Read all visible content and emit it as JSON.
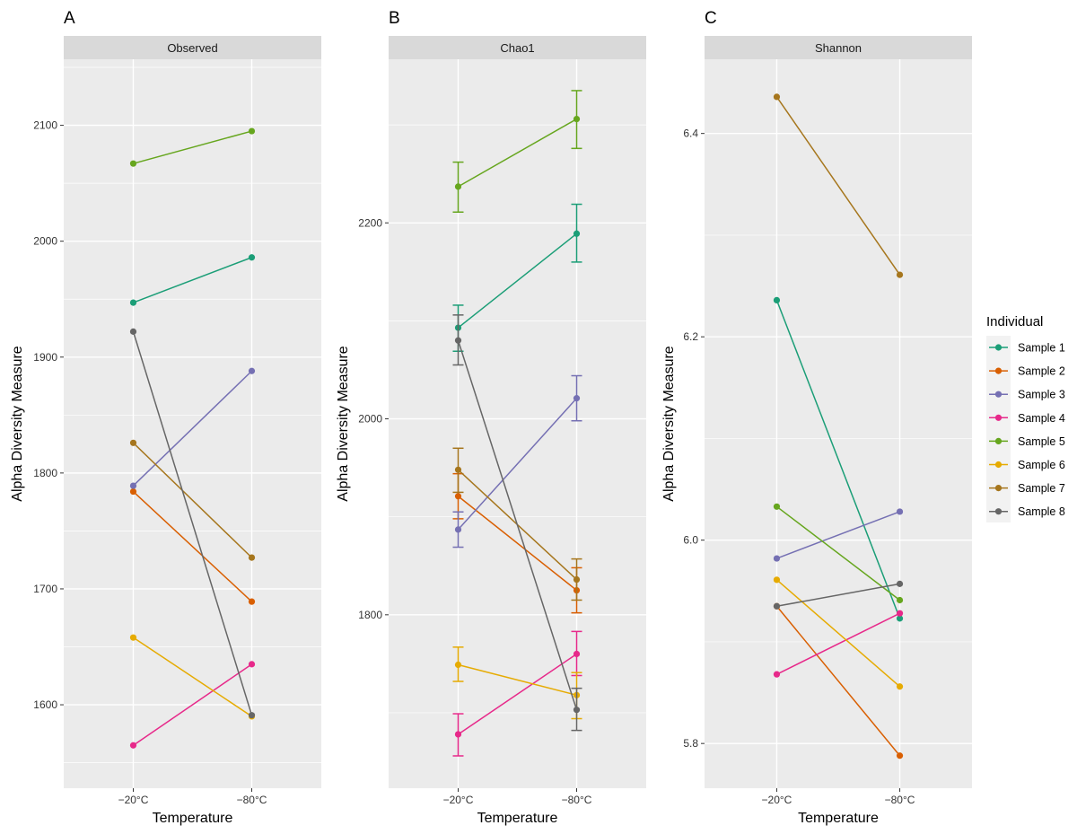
{
  "figure": {
    "legend": {
      "title": "Individual",
      "placement": "right",
      "entries": [
        {
          "name": "Sample 1",
          "color": "#1B9E77"
        },
        {
          "name": "Sample 2",
          "color": "#D95F02"
        },
        {
          "name": "Sample 3",
          "color": "#7570B3"
        },
        {
          "name": "Sample 4",
          "color": "#E7298A"
        },
        {
          "name": "Sample 5",
          "color": "#66A61E"
        },
        {
          "name": "Sample 6",
          "color": "#E6AB02"
        },
        {
          "name": "Sample 7",
          "color": "#A6761D"
        },
        {
          "name": "Sample 8",
          "color": "#666666"
        }
      ]
    },
    "colors": {
      "panel_background": "#EBEBEB",
      "strip_background": "#D9D9D9",
      "gridline": "#FFFFFF"
    }
  },
  "chart_data": [
    {
      "type": "line",
      "panel_tag": "A",
      "title": "Observed",
      "xlabel": "Temperature",
      "ylabel": "Alpha Diversity Measure",
      "categories": [
        "−20°C",
        "−80°C"
      ],
      "ylim": [
        1528,
        2157
      ],
      "yticks": [
        1600,
        1700,
        1800,
        1900,
        2000,
        2100
      ],
      "ytick_labels": [
        "1600",
        "1700",
        "1800",
        "1900",
        "2000",
        "2100"
      ],
      "grid": true,
      "error_bars": false,
      "series": [
        {
          "name": "Sample 1",
          "values": [
            1947,
            1986
          ]
        },
        {
          "name": "Sample 2",
          "values": [
            1784,
            1689
          ]
        },
        {
          "name": "Sample 3",
          "values": [
            1789,
            1888
          ]
        },
        {
          "name": "Sample 4",
          "values": [
            1565,
            1635
          ]
        },
        {
          "name": "Sample 5",
          "values": [
            2067,
            2095
          ]
        },
        {
          "name": "Sample 6",
          "values": [
            1658,
            1590
          ]
        },
        {
          "name": "Sample 7",
          "values": [
            1826,
            1727
          ]
        },
        {
          "name": "Sample 8",
          "values": [
            1922,
            1591
          ]
        }
      ]
    },
    {
      "type": "line",
      "panel_tag": "B",
      "title": "Chao1",
      "xlabel": "Temperature",
      "ylabel": "Alpha Diversity Measure",
      "categories": [
        "−20°C",
        "−80°C"
      ],
      "ylim": [
        1623,
        2367
      ],
      "yticks": [
        1800,
        2000,
        2200
      ],
      "ytick_labels": [
        "1800",
        "2000",
        "2200"
      ],
      "grid": true,
      "error_bars": true,
      "series": [
        {
          "name": "Sample 1",
          "values": [
            2093,
            2189
          ],
          "lower": [
            2069,
            2160
          ],
          "upper": [
            2116,
            2219
          ]
        },
        {
          "name": "Sample 2",
          "values": [
            1921,
            1825
          ],
          "lower": [
            1898,
            1802
          ],
          "upper": [
            1944,
            1848
          ]
        },
        {
          "name": "Sample 3",
          "values": [
            1887,
            2021
          ],
          "lower": [
            1869,
            1998
          ],
          "upper": [
            1905,
            2044
          ]
        },
        {
          "name": "Sample 4",
          "values": [
            1678,
            1760
          ],
          "lower": [
            1656,
            1738
          ],
          "upper": [
            1699,
            1783
          ]
        },
        {
          "name": "Sample 5",
          "values": [
            2237,
            2306
          ],
          "lower": [
            2211,
            2276
          ],
          "upper": [
            2262,
            2335
          ]
        },
        {
          "name": "Sample 6",
          "values": [
            1749,
            1718
          ],
          "lower": [
            1732,
            1694
          ],
          "upper": [
            1767,
            1741
          ]
        },
        {
          "name": "Sample 7",
          "values": [
            1948,
            1836
          ],
          "lower": [
            1925,
            1815
          ],
          "upper": [
            1970,
            1857
          ]
        },
        {
          "name": "Sample 8",
          "values": [
            2080,
            1703
          ],
          "lower": [
            2055,
            1682
          ],
          "upper": [
            2106,
            1725
          ]
        }
      ]
    },
    {
      "type": "line",
      "panel_tag": "C",
      "title": "Shannon",
      "xlabel": "Temperature",
      "ylabel": "Alpha Diversity Measure",
      "categories": [
        "−20°C",
        "−80°C"
      ],
      "ylim": [
        5.756,
        6.473
      ],
      "yticks": [
        5.8,
        6.0,
        6.2,
        6.4
      ],
      "ytick_labels": [
        "5.8",
        "6.0",
        "6.2",
        "6.4"
      ],
      "grid": true,
      "error_bars": false,
      "series": [
        {
          "name": "Sample 1",
          "values": [
            6.236,
            5.923
          ]
        },
        {
          "name": "Sample 2",
          "values": [
            5.935,
            5.788
          ]
        },
        {
          "name": "Sample 3",
          "values": [
            5.982,
            6.028
          ]
        },
        {
          "name": "Sample 4",
          "values": [
            5.868,
            5.928
          ]
        },
        {
          "name": "Sample 5",
          "values": [
            6.033,
            5.941
          ]
        },
        {
          "name": "Sample 6",
          "values": [
            5.961,
            5.856
          ]
        },
        {
          "name": "Sample 7",
          "values": [
            6.436,
            6.261
          ]
        },
        {
          "name": "Sample 8",
          "values": [
            5.935,
            5.957
          ]
        }
      ]
    }
  ]
}
